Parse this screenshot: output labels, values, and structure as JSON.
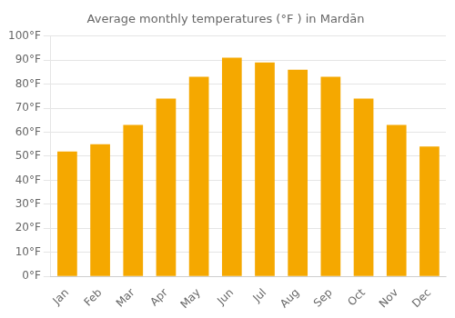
{
  "chart_data": {
    "type": "bar",
    "title": "Average monthly temperatures (°F ) in Mardān",
    "categories": [
      "Jan",
      "Feb",
      "Mar",
      "Apr",
      "May",
      "Jun",
      "Jul",
      "Aug",
      "Sep",
      "Oct",
      "Nov",
      "Dec"
    ],
    "values": [
      52,
      55,
      63,
      74,
      83,
      91,
      89,
      86,
      83,
      74,
      63,
      54
    ],
    "color": "#F5A800",
    "ylim": [
      0,
      100
    ],
    "yticks": [
      {
        "value": 0,
        "label": "0°F"
      },
      {
        "value": 10,
        "label": "10°F"
      },
      {
        "value": 20,
        "label": "20°F"
      },
      {
        "value": 30,
        "label": "30°F"
      },
      {
        "value": 40,
        "label": "40°F"
      },
      {
        "value": 50,
        "label": "50°F"
      },
      {
        "value": 60,
        "label": "60°F"
      },
      {
        "value": 70,
        "label": "70°F"
      },
      {
        "value": 80,
        "label": "80°F"
      },
      {
        "value": 90,
        "label": "90°F"
      },
      {
        "value": 100,
        "label": "100°F"
      }
    ],
    "grid": true
  }
}
